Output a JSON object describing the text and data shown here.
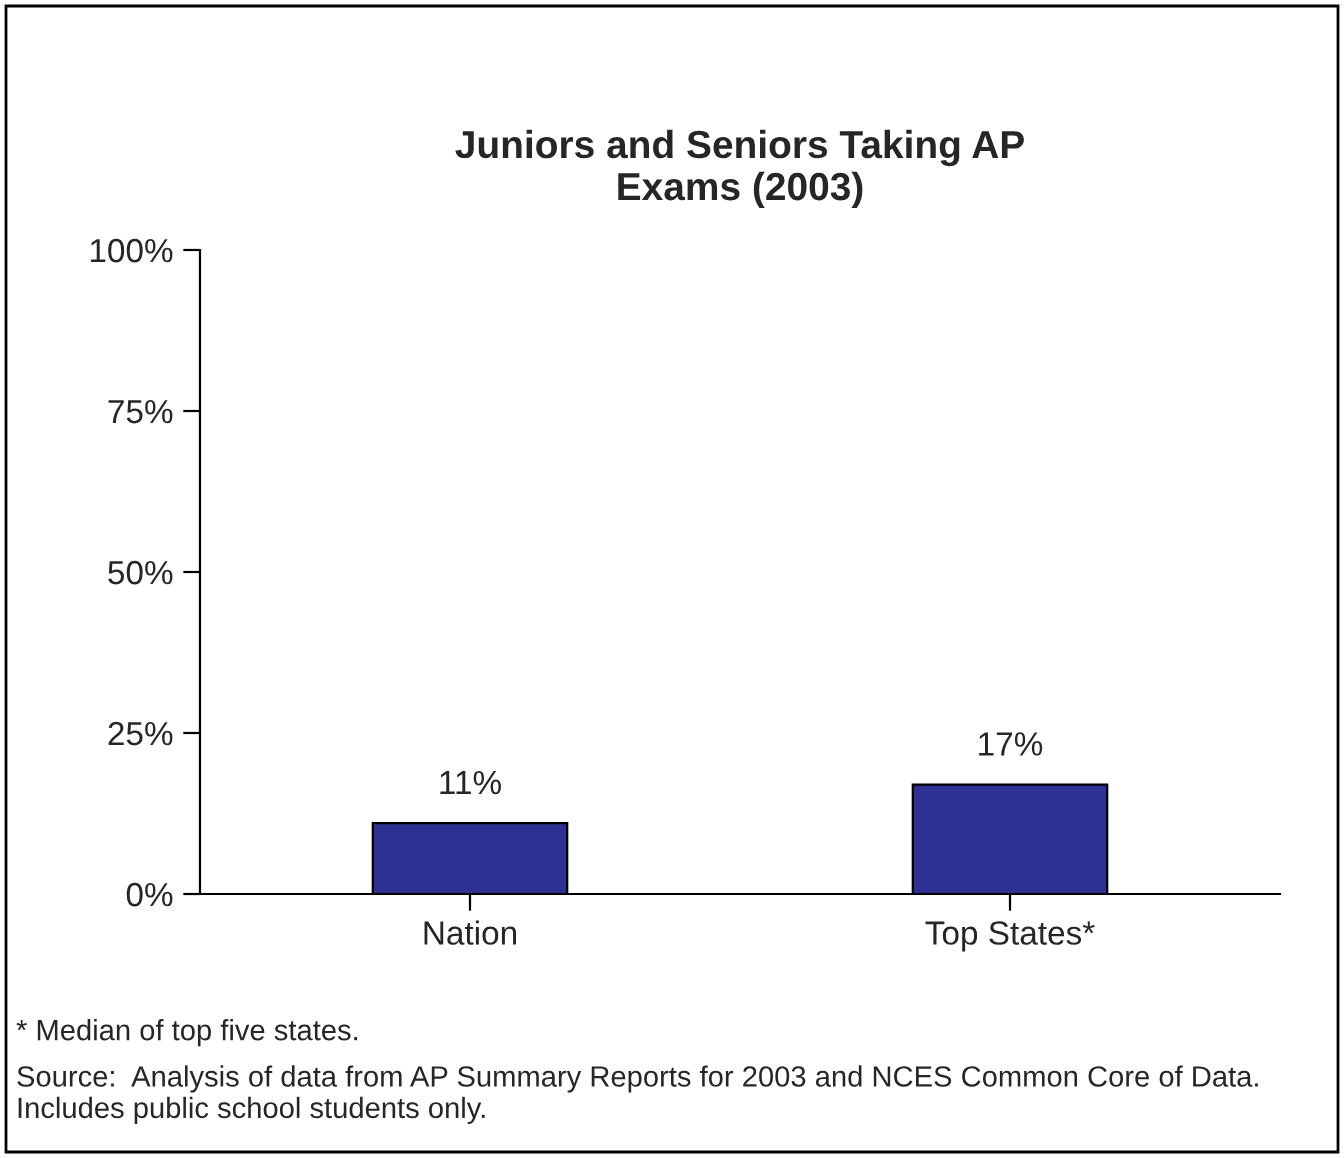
{
  "chart_data": {
    "type": "bar",
    "title": "Juniors and Seniors Taking AP\nExams (2003)",
    "categories": [
      "Nation",
      "Top States*"
    ],
    "values": [
      11,
      17
    ],
    "color": "#2e3192",
    "ylim": [
      0,
      100
    ],
    "yticks": [
      {
        "value": 0,
        "label": "0%"
      },
      {
        "value": 25,
        "label": "25%"
      },
      {
        "value": 50,
        "label": "50%"
      },
      {
        "value": 75,
        "label": "75%"
      },
      {
        "value": 100,
        "label": "100%"
      }
    ],
    "value_labels": [
      "11%",
      "17%"
    ],
    "grid": false,
    "legend": false,
    "annotations": [
      "* Median of top five states.",
      "Source:  Analysis of data from AP Summary Reports for 2003 and NCES Common Core of Data.  Includes public school students only."
    ]
  }
}
